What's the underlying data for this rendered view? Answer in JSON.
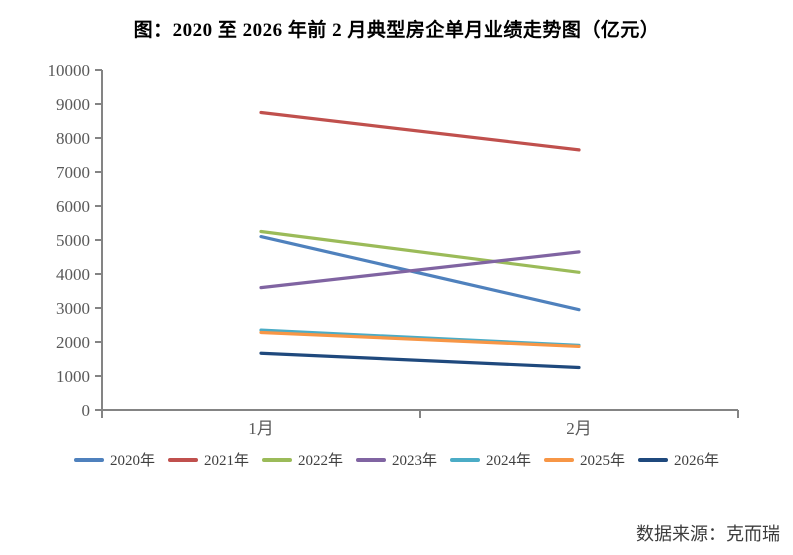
{
  "title": "图：2020 至 2026 年前 2 月典型房企单月业绩走势图（亿元）",
  "source": "数据来源：克而瑞",
  "chart_data": {
    "type": "line",
    "categories": [
      "1月",
      "2月"
    ],
    "series": [
      {
        "name": "2020年",
        "color": "#4F81BD",
        "values": [
          5100,
          2950
        ]
      },
      {
        "name": "2021年",
        "color": "#C0504D",
        "values": [
          8750,
          7650
        ]
      },
      {
        "name": "2022年",
        "color": "#9BBB59",
        "values": [
          5250,
          4050
        ]
      },
      {
        "name": "2023年",
        "color": "#8064A2",
        "values": [
          3600,
          4650
        ]
      },
      {
        "name": "2024年",
        "color": "#4BACC6",
        "values": [
          2350,
          1900
        ]
      },
      {
        "name": "2025年",
        "color": "#F79646",
        "values": [
          2280,
          1870
        ]
      },
      {
        "name": "2026年",
        "color": "#1F497D",
        "values": [
          1670,
          1250
        ]
      }
    ],
    "title": "图：2020 至 2026 年前 2 月典型房企单月业绩走势图（亿元）",
    "xlabel": "",
    "ylabel": "",
    "ylim": [
      0,
      10000
    ],
    "ytick_interval": 1000,
    "grid": false,
    "legend_position": "bottom",
    "axis_color": "#848484",
    "tick_label_color": "#595959"
  }
}
